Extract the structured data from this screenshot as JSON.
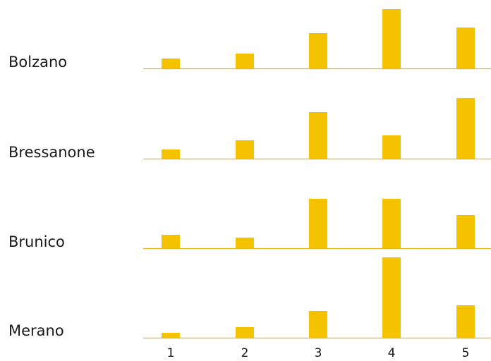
{
  "chart_data": {
    "type": "bar",
    "layout": "small-multiples",
    "categories": [
      "1",
      "2",
      "3",
      "4",
      "5"
    ],
    "series": [
      {
        "name": "Bolzano",
        "values": [
          14,
          21,
          50,
          84,
          58
        ]
      },
      {
        "name": "Bressanone",
        "values": [
          13,
          26,
          66,
          33,
          86
        ]
      },
      {
        "name": "Brunico",
        "values": [
          19,
          15,
          70,
          70,
          47
        ]
      },
      {
        "name": "Merano",
        "values": [
          7,
          15,
          38,
          114,
          46
        ]
      }
    ],
    "bar_color": "#f5c200",
    "baseline_color": "#e6b422",
    "grid": false,
    "legend": "none",
    "title": "",
    "xlabel": "",
    "ylabel": ""
  }
}
